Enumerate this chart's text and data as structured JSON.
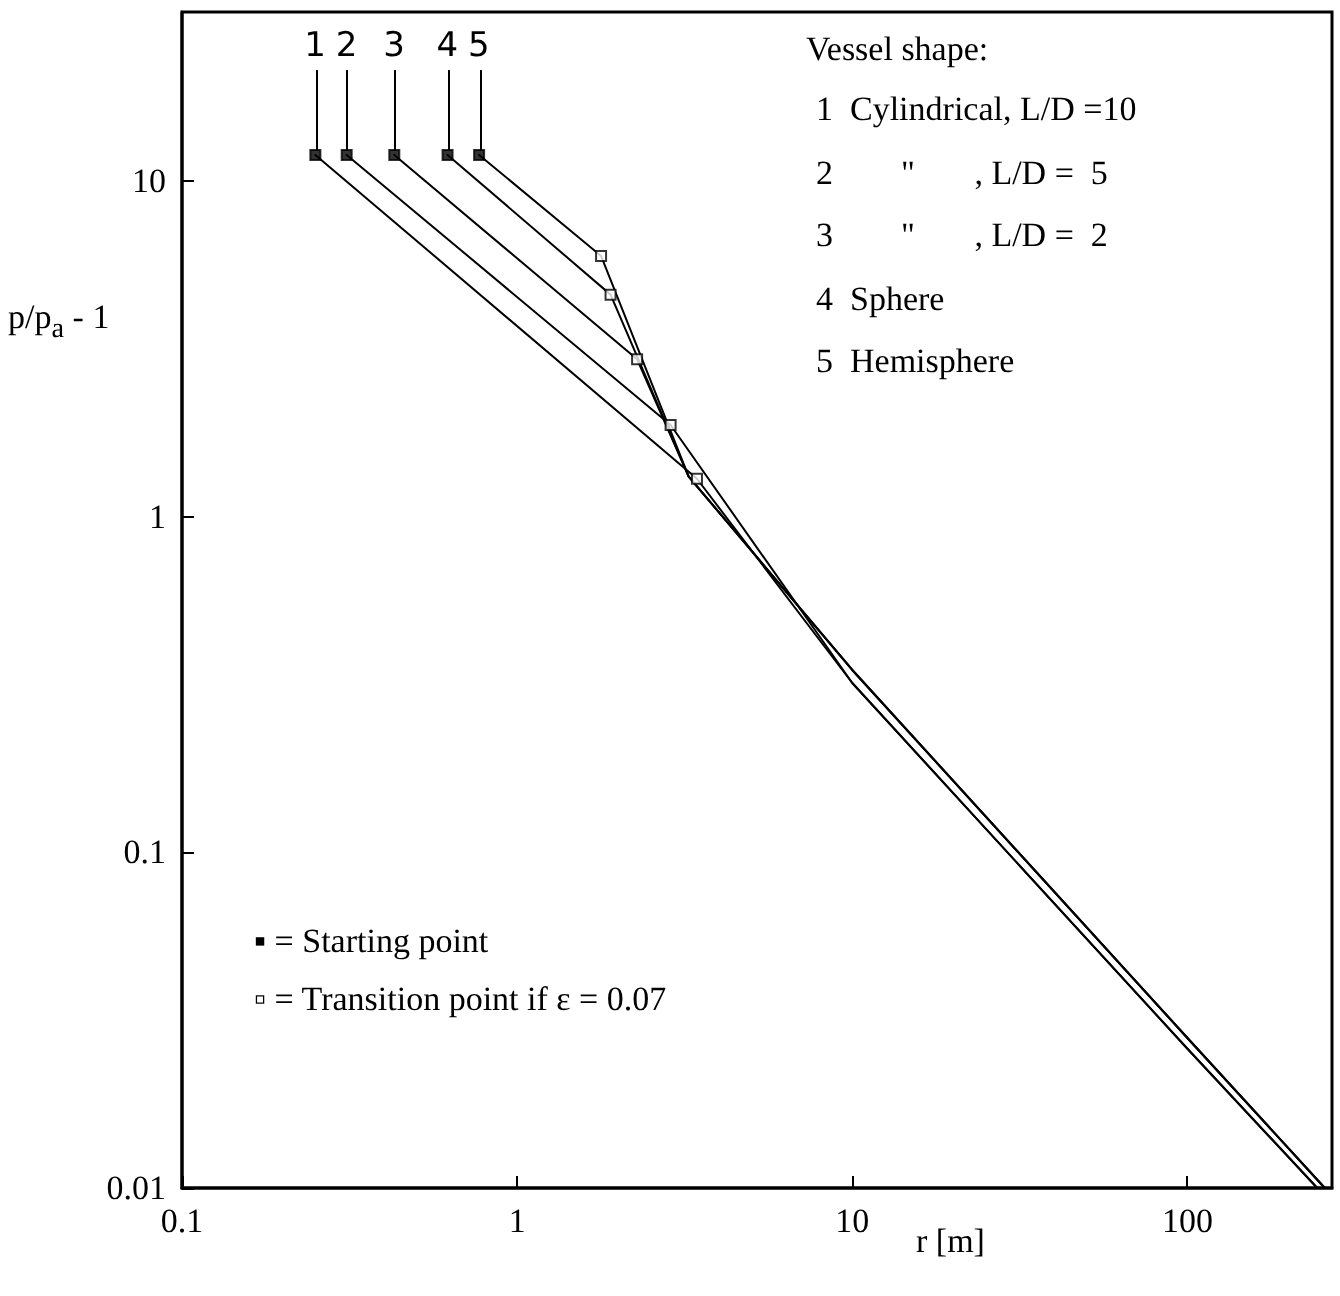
{
  "chart_data": {
    "type": "line",
    "xlabel": "r [m]",
    "ylabel": "p/p$_{a}$ - 1",
    "log": "xy",
    "xlim": [
      0.1,
      270
    ],
    "ylim": [
      0.01,
      32
    ],
    "xticks": [
      0.1,
      1,
      10,
      100
    ],
    "yticks": [
      0.01,
      0.1,
      1,
      10
    ],
    "grid": false,
    "legend": false,
    "marker": "none",
    "line_style": "solid",
    "series": [
      {
        "name": "1",
        "color": "#000000",
        "x": [
          0.25,
          3.44,
          10,
          100,
          244
        ],
        "values": [
          12,
          1.3,
          0.32,
          0.026,
          0.01
        ]
      },
      {
        "name": "2",
        "color": "#000000",
        "x": [
          0.31,
          2.87,
          10,
          100,
          244
        ],
        "values": [
          12,
          1.88,
          0.32,
          0.026,
          0.01
        ]
      },
      {
        "name": "3",
        "color": "#000000",
        "x": [
          0.43,
          2.28,
          3.25,
          10,
          100,
          257
        ],
        "values": [
          12,
          2.95,
          1.32,
          0.35,
          0.028,
          0.01
        ]
      },
      {
        "name": "4",
        "color": "#000000",
        "x": [
          0.62,
          1.9,
          3.25,
          10,
          100,
          257
        ],
        "values": [
          12,
          4.6,
          1.32,
          0.35,
          0.028,
          0.01
        ]
      },
      {
        "name": "5",
        "color": "#000000",
        "x": [
          0.77,
          1.78,
          3.25,
          10,
          100,
          257
        ],
        "values": [
          12,
          6.0,
          1.32,
          0.35,
          0.028,
          0.01
        ]
      },
      {
        "type": "scatter",
        "marker": "square",
        "color": "#000000",
        "x": [
          0.25,
          0.31,
          0.43,
          0.62,
          0.77
        ],
        "values": [
          12,
          12,
          12,
          12,
          12
        ]
      },
      {
        "type": "scatter",
        "marker": "square",
        "color": "#ffffff",
        "x": [
          3.44,
          2.87,
          2.28,
          1.9,
          1.78
        ],
        "values": [
          1.3,
          1.88,
          2.95,
          4.6,
          6.0
        ]
      }
    ],
    "annotations": [
      "Vessel shape:",
      "1  Cylindrical, L/D =10",
      "2        \"       , L/D =  5",
      "3        \"       , L/D =  2",
      "4  Sphere",
      "5  Hemisphere",
      "▪ = Starting point",
      "▫ = Transition point if ε = 0.07"
    ]
  }
}
